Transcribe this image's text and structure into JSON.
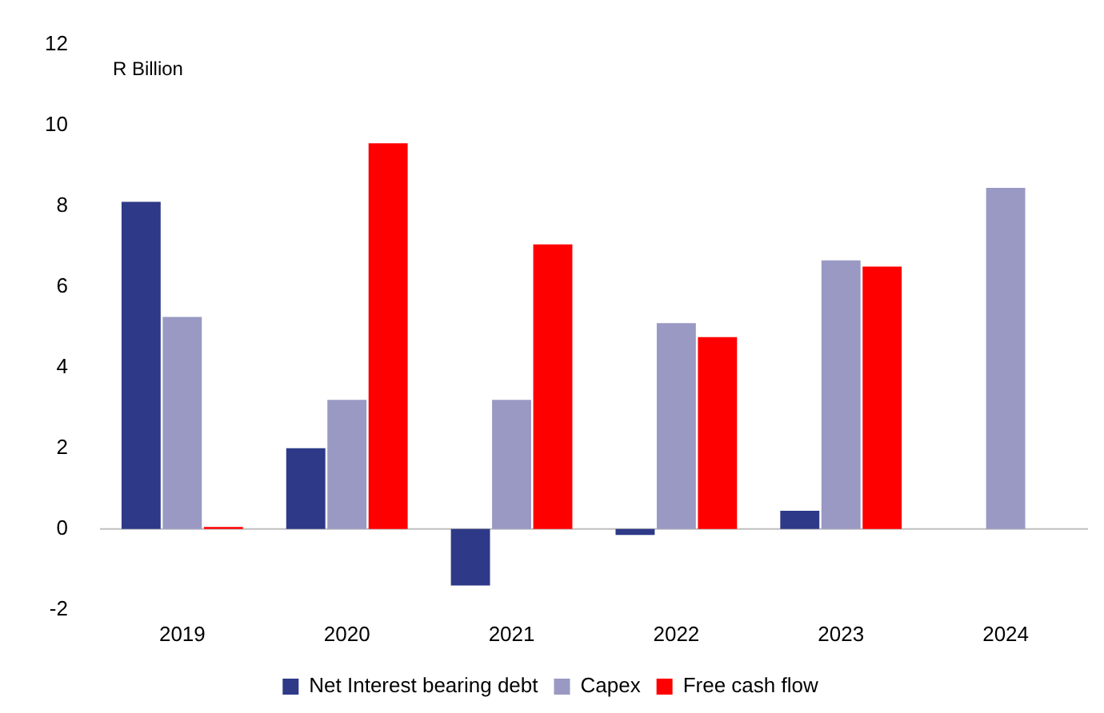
{
  "chart_data": {
    "type": "bar",
    "ylabel": "R Billion",
    "categories": [
      "2019",
      "2020",
      "2021",
      "2022",
      "2023",
      "2024"
    ],
    "series": [
      {
        "name": "Net Interest bearing debt",
        "color": "#2e3a87",
        "values": [
          8.1,
          2.0,
          -1.4,
          -0.15,
          0.45,
          null
        ]
      },
      {
        "name": "Capex",
        "color": "#9999c4",
        "values": [
          5.25,
          3.2,
          3.2,
          5.1,
          6.65,
          8.45
        ]
      },
      {
        "name": "Free cash flow",
        "color": "#ff0000",
        "values": [
          0.05,
          9.55,
          7.05,
          4.75,
          6.5,
          null
        ]
      }
    ],
    "ylim": [
      -2,
      12
    ],
    "yticks": [
      -2,
      0,
      2,
      4,
      6,
      8,
      10,
      12
    ],
    "ref_lines": [
      {
        "axis": "y",
        "value": 0,
        "color": "#bfbfbf"
      }
    ],
    "legend": "bottom"
  }
}
